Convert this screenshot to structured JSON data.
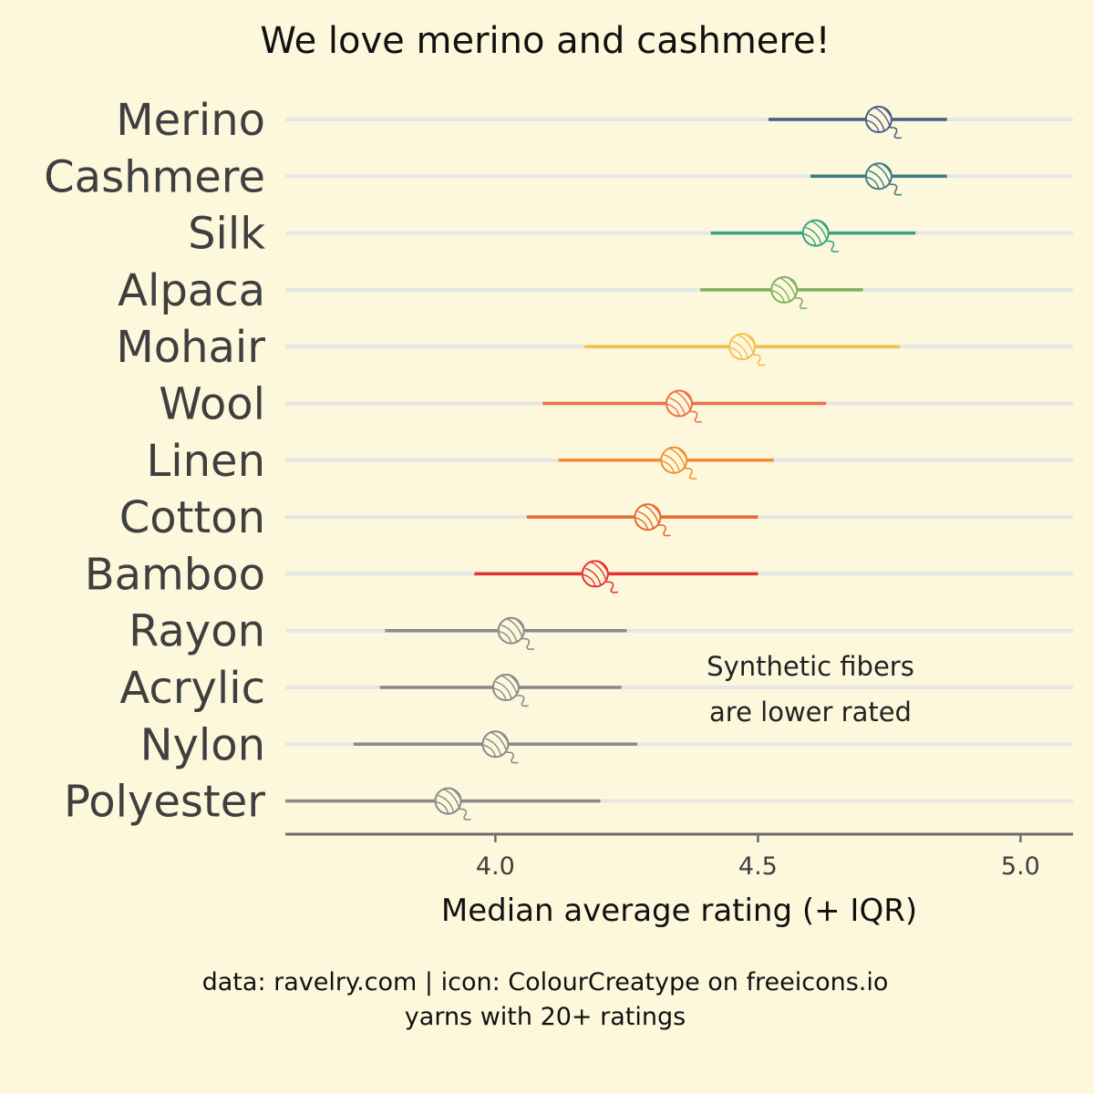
{
  "chart_data": {
    "type": "dot-range",
    "title": "We love merino and cashmere!",
    "xlabel": "Median average rating (+ IQR)",
    "ylabel": "",
    "xlim": [
      3.6,
      5.1
    ],
    "x_ticks": [
      4.0,
      4.5,
      5.0
    ],
    "x_tick_labels": [
      "4.0",
      "4.5",
      "5.0"
    ],
    "grid": "horizontal",
    "marker": "yarn-ball-icon",
    "categories": [
      "Merino",
      "Cashmere",
      "Silk",
      "Alpaca",
      "Mohair",
      "Wool",
      "Linen",
      "Cotton",
      "Bamboo",
      "Rayon",
      "Acrylic",
      "Nylon",
      "Polyester"
    ],
    "series": [
      {
        "category": "Merino",
        "median": 4.73,
        "low": 4.52,
        "high": 4.86,
        "color": "#4a5f88"
      },
      {
        "category": "Cashmere",
        "median": 4.73,
        "low": 4.6,
        "high": 4.86,
        "color": "#3b7c84"
      },
      {
        "category": "Silk",
        "median": 4.61,
        "low": 4.41,
        "high": 4.8,
        "color": "#36a27f"
      },
      {
        "category": "Alpaca",
        "median": 4.55,
        "low": 4.39,
        "high": 4.7,
        "color": "#7db35c"
      },
      {
        "category": "Mohair",
        "median": 4.47,
        "low": 4.17,
        "high": 4.77,
        "color": "#f5bf4b"
      },
      {
        "category": "Wool",
        "median": 4.35,
        "low": 4.09,
        "high": 4.63,
        "color": "#ee7045"
      },
      {
        "category": "Linen",
        "median": 4.34,
        "low": 4.12,
        "high": 4.53,
        "color": "#f28f2e"
      },
      {
        "category": "Cotton",
        "median": 4.29,
        "low": 4.06,
        "high": 4.5,
        "color": "#e8692c"
      },
      {
        "category": "Bamboo",
        "median": 4.19,
        "low": 3.96,
        "high": 4.5,
        "color": "#e93131"
      },
      {
        "category": "Rayon",
        "median": 4.03,
        "low": 3.79,
        "high": 4.25,
        "color": "#8a8a8a"
      },
      {
        "category": "Acrylic",
        "median": 4.02,
        "low": 3.78,
        "high": 4.24,
        "color": "#8a8a8a"
      },
      {
        "category": "Nylon",
        "median": 4.0,
        "low": 3.73,
        "high": 4.27,
        "color": "#8a8a8a"
      },
      {
        "category": "Polyester",
        "median": 3.91,
        "low": 3.6,
        "high": 4.2,
        "color": "#8a8a8a"
      }
    ],
    "annotation": [
      "Synthetic fibers",
      "are lower rated"
    ],
    "caption": [
      "data: ravelry.com | icon: ColourCreatype on freeicons.io",
      "yarns with 20+ ratings"
    ],
    "colors": {
      "background": "#fdf8dc",
      "gridline": "#e6e6e6",
      "axis": "#6b6b6b",
      "label": "#3f3f3f"
    }
  }
}
